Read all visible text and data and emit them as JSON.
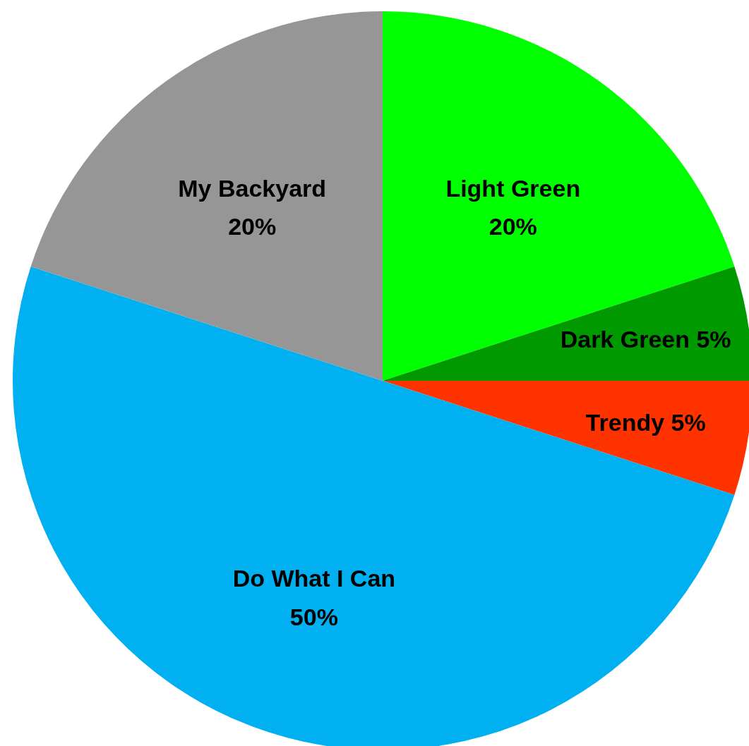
{
  "chart_data": {
    "type": "pie",
    "categories": [
      "Light Green",
      "Dark Green",
      "Trendy",
      "Do What I Can",
      "My Backyard"
    ],
    "values": [
      20,
      5,
      5,
      50,
      20
    ],
    "value_labels": [
      "20%",
      "5%",
      "5%",
      "50%",
      "20%"
    ],
    "colors": [
      "#00ff00",
      "#009900",
      "#ff3300",
      "#00b0f0",
      "#969696"
    ],
    "legend": false
  }
}
